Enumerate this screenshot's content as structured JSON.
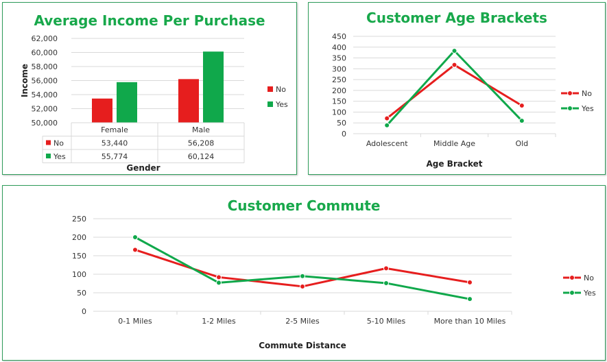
{
  "colors": {
    "no": "#e61e1e",
    "yes": "#10a84b",
    "title": "#18a84b",
    "grid": "#d9d9d9"
  },
  "chart_data": [
    {
      "type": "bar",
      "title": "Average Income Per Purchase",
      "xlabel": "Gender",
      "ylabel": "Income",
      "ylim": [
        50000,
        62000
      ],
      "yticks": [
        "62,000",
        "60,000",
        "58,000",
        "56,000",
        "54,000",
        "52,000",
        "50,000"
      ],
      "ytick_values": [
        62000,
        60000,
        58000,
        56000,
        54000,
        52000,
        50000
      ],
      "categories": [
        "Female",
        "Male"
      ],
      "series": [
        {
          "name": "No",
          "values": [
            53440,
            56208
          ],
          "labels": [
            "53,440",
            "56,208"
          ]
        },
        {
          "name": "Yes",
          "values": [
            55774,
            60124
          ],
          "labels": [
            "55,774",
            "60,124"
          ]
        }
      ],
      "legend": "right",
      "grid": true
    },
    {
      "type": "line",
      "title": "Customer Age Brackets",
      "xlabel": "Age Bracket",
      "ylabel": "",
      "ylim": [
        0,
        450
      ],
      "yticks": [
        "450",
        "400",
        "350",
        "300",
        "250",
        "200",
        "150",
        "100",
        "50",
        "0"
      ],
      "ytick_values": [
        450,
        400,
        350,
        300,
        250,
        200,
        150,
        100,
        50,
        0
      ],
      "categories": [
        "Adolescent",
        "Middle Age",
        "Old"
      ],
      "series": [
        {
          "name": "No",
          "values": [
            71,
            318,
            130
          ]
        },
        {
          "name": "Yes",
          "values": [
            39,
            383,
            60
          ]
        }
      ],
      "legend": "right",
      "grid": true
    },
    {
      "type": "line",
      "title": "Customer Commute",
      "xlabel": "Commute Distance",
      "ylabel": "",
      "ylim": [
        0,
        250
      ],
      "yticks": [
        "250",
        "200",
        "150",
        "100",
        "50",
        "0"
      ],
      "ytick_values": [
        250,
        200,
        150,
        100,
        50,
        0
      ],
      "categories": [
        "0-1 Miles",
        "1-2 Miles",
        "2-5 Miles",
        "5-10 Miles",
        "More than 10 Miles"
      ],
      "series": [
        {
          "name": "No",
          "values": [
            166,
            92,
            67,
            116,
            78
          ]
        },
        {
          "name": "Yes",
          "values": [
            200,
            77,
            95,
            76,
            33
          ]
        }
      ],
      "legend": "right",
      "grid": true
    }
  ]
}
